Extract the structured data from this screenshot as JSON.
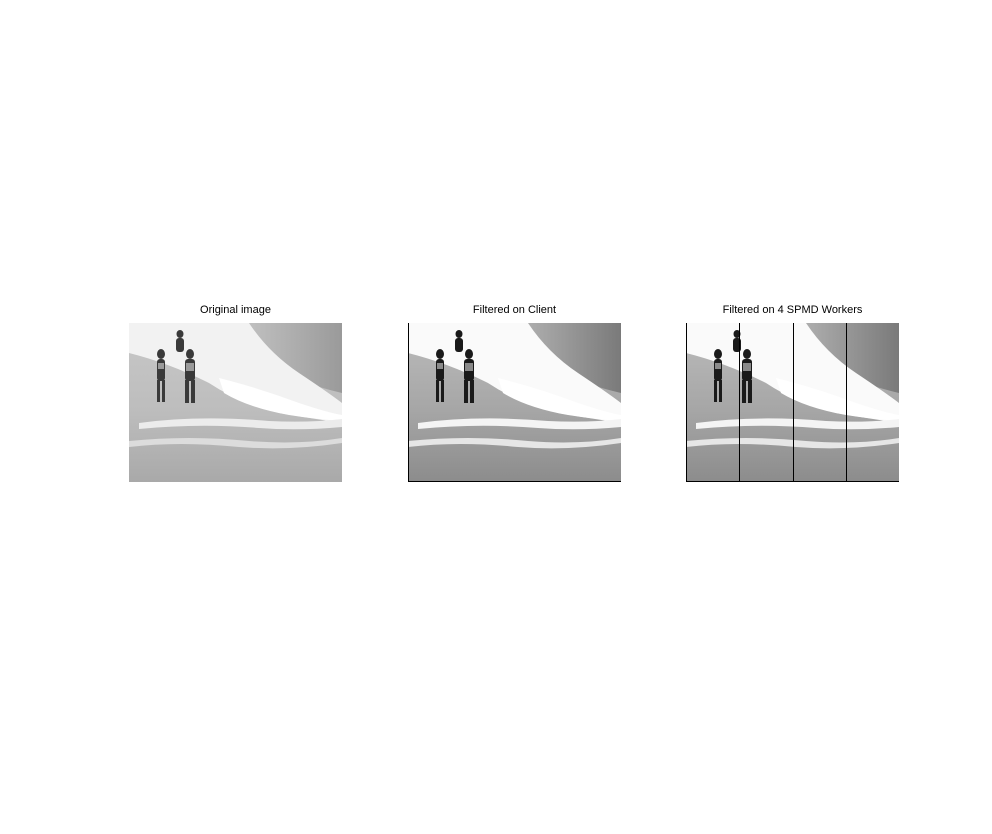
{
  "panels": [
    {
      "title": "Original image",
      "style": "original",
      "worker_dividers": 0
    },
    {
      "title": "Filtered on Client",
      "style": "filtered",
      "worker_dividers": 0
    },
    {
      "title": "Filtered on 4 SPMD Workers",
      "style": "filtered",
      "worker_dividers": 3
    }
  ],
  "colors": {
    "background": "#ffffff",
    "text": "#000000",
    "divider": "#000000"
  }
}
